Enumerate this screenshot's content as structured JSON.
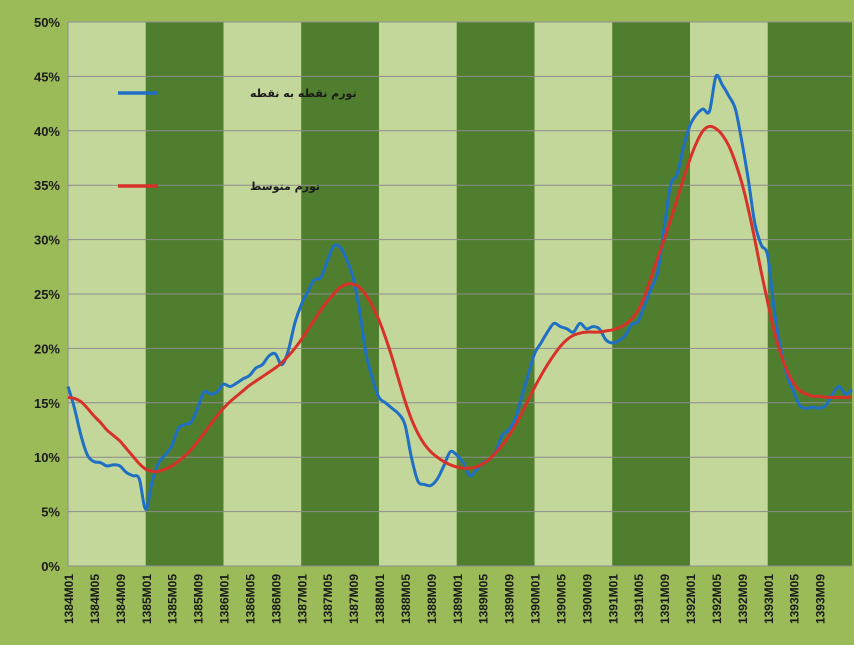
{
  "chart_data": {
    "type": "line",
    "ylim": [
      0,
      50
    ],
    "y_ticks": [
      "0%",
      "5%",
      "10%",
      "15%",
      "20%",
      "25%",
      "30%",
      "35%",
      "40%",
      "45%",
      "50%"
    ],
    "x_ticks": [
      "1384M01",
      "1384M05",
      "1384M09",
      "1385M01",
      "1385M05",
      "1385M09",
      "1386M01",
      "1386M05",
      "1386M09",
      "1387M01",
      "1387M05",
      "1387M09",
      "1388M01",
      "1388M05",
      "1388M09",
      "1389M01",
      "1389M05",
      "1389M09",
      "1390M01",
      "1390M05",
      "1390M09",
      "1391M01",
      "1391M05",
      "1391M09",
      "1392M01",
      "1392M05",
      "1392M09",
      "1393M01",
      "1393M05",
      "1393M09"
    ],
    "year_bands": [
      {
        "year": "1384",
        "shade": "light"
      },
      {
        "year": "1385",
        "shade": "dark"
      },
      {
        "year": "1386",
        "shade": "light"
      },
      {
        "year": "1387",
        "shade": "dark"
      },
      {
        "year": "1388",
        "shade": "light"
      },
      {
        "year": "1389",
        "shade": "dark"
      },
      {
        "year": "1390",
        "shade": "light"
      },
      {
        "year": "1391",
        "shade": "dark"
      },
      {
        "year": "1392",
        "shade": "light"
      },
      {
        "year": "1393",
        "shade": "dark"
      }
    ],
    "band_colors": {
      "light": "#c4d79b",
      "dark": "#4f7f2e"
    },
    "grid": true,
    "legend_position": "inside-top-left",
    "series": [
      {
        "name": "تورم نقطه به نقطه",
        "color": "#1f6fc4",
        "points": [
          [
            "1384M01",
            16.5
          ],
          [
            "1384M02",
            14.5
          ],
          [
            "1384M03",
            12
          ],
          [
            "1384M04",
            10.2
          ],
          [
            "1384M05",
            9.6
          ],
          [
            "1384M06",
            9.5
          ],
          [
            "1384M07",
            9.2
          ],
          [
            "1384M08",
            9.3
          ],
          [
            "1384M09",
            9.2
          ],
          [
            "1384M10",
            8.6
          ],
          [
            "1384M11",
            8.3
          ],
          [
            "1384M12",
            8
          ],
          [
            "1385M01",
            5.2
          ],
          [
            "1385M02",
            7.8
          ],
          [
            "1385M03",
            9.5
          ],
          [
            "1385M04",
            10.2
          ],
          [
            "1385M05",
            11
          ],
          [
            "1385M06",
            12.6
          ],
          [
            "1385M07",
            13
          ],
          [
            "1385M08",
            13.2
          ],
          [
            "1385M09",
            14.5
          ],
          [
            "1385M10",
            16
          ],
          [
            "1385M11",
            15.8
          ],
          [
            "1385M12",
            16
          ],
          [
            "1386M01",
            16.7
          ],
          [
            "1386M02",
            16.5
          ],
          [
            "1386M03",
            16.8
          ],
          [
            "1386M04",
            17.2
          ],
          [
            "1386M05",
            17.5
          ],
          [
            "1386M06",
            18.2
          ],
          [
            "1386M07",
            18.5
          ],
          [
            "1386M08",
            19.3
          ],
          [
            "1386M09",
            19.5
          ],
          [
            "1386M10",
            18.5
          ],
          [
            "1386M11",
            19.8
          ],
          [
            "1386M12",
            22.3
          ],
          [
            "1387M01",
            24
          ],
          [
            "1387M02",
            25.2
          ],
          [
            "1387M03",
            26.3
          ],
          [
            "1387M04",
            26.5
          ],
          [
            "1387M05",
            28
          ],
          [
            "1387M06",
            29.4
          ],
          [
            "1387M07",
            29.3
          ],
          [
            "1387M08",
            28.2
          ],
          [
            "1387M09",
            26.5
          ],
          [
            "1387M10",
            23.5
          ],
          [
            "1387M11",
            19.5
          ],
          [
            "1387M12",
            17.2
          ],
          [
            "1388M01",
            15.5
          ],
          [
            "1388M02",
            15
          ],
          [
            "1388M03",
            14.5
          ],
          [
            "1388M04",
            14
          ],
          [
            "1388M05",
            13
          ],
          [
            "1388M06",
            10
          ],
          [
            "1388M07",
            7.8
          ],
          [
            "1388M08",
            7.5
          ],
          [
            "1388M09",
            7.4
          ],
          [
            "1388M10",
            8
          ],
          [
            "1388M11",
            9.2
          ],
          [
            "1388M12",
            10.5
          ],
          [
            "1389M01",
            10.2
          ],
          [
            "1389M02",
            9.5
          ],
          [
            "1389M03",
            8.3
          ],
          [
            "1389M04",
            8.8
          ],
          [
            "1389M05",
            9.5
          ],
          [
            "1389M06",
            9.8
          ],
          [
            "1389M07",
            10.5
          ],
          [
            "1389M08",
            12
          ],
          [
            "1389M09",
            12.5
          ],
          [
            "1389M10",
            13.5
          ],
          [
            "1389M11",
            15.5
          ],
          [
            "1389M12",
            17.5
          ],
          [
            "1390M01",
            19.5
          ],
          [
            "1390M02",
            20.5
          ],
          [
            "1390M03",
            21.5
          ],
          [
            "1390M04",
            22.3
          ],
          [
            "1390M05",
            22
          ],
          [
            "1390M06",
            21.8
          ],
          [
            "1390M07",
            21.5
          ],
          [
            "1390M08",
            22.3
          ],
          [
            "1390M09",
            21.8
          ],
          [
            "1390M10",
            22
          ],
          [
            "1390M11",
            21.8
          ],
          [
            "1390M12",
            20.8
          ],
          [
            "1391M01",
            20.5
          ],
          [
            "1391M02",
            20.7
          ],
          [
            "1391M03",
            21.2
          ],
          [
            "1391M04",
            22.2
          ],
          [
            "1391M05",
            22.5
          ],
          [
            "1391M06",
            24
          ],
          [
            "1391M07",
            25.5
          ],
          [
            "1391M08",
            27
          ],
          [
            "1391M09",
            31
          ],
          [
            "1391M10",
            35
          ],
          [
            "1391M11",
            36
          ],
          [
            "1391M12",
            38.5
          ],
          [
            "1392M01",
            40.5
          ],
          [
            "1392M02",
            41.5
          ],
          [
            "1392M03",
            42
          ],
          [
            "1392M04",
            41.8
          ],
          [
            "1392M05",
            45
          ],
          [
            "1392M06",
            44.2
          ],
          [
            "1392M07",
            43.2
          ],
          [
            "1392M08",
            42
          ],
          [
            "1392M09",
            39
          ],
          [
            "1392M10",
            35.5
          ],
          [
            "1392M11",
            31.5
          ],
          [
            "1392M12",
            29.5
          ],
          [
            "1393M01",
            28.5
          ],
          [
            "1393M02",
            23.5
          ],
          [
            "1393M03",
            20
          ],
          [
            "1393M04",
            17.5
          ],
          [
            "1393M05",
            16
          ],
          [
            "1393M06",
            14.7
          ],
          [
            "1393M07",
            14.5
          ],
          [
            "1393M08",
            14.6
          ],
          [
            "1393M09",
            14.5
          ],
          [
            "1393M10",
            14.8
          ],
          [
            "1393M11",
            15.8
          ],
          [
            "1393M12",
            16.5
          ],
          [
            "1393M12+1",
            15.8
          ],
          [
            "1393M12+2",
            16.2
          ]
        ]
      },
      {
        "name": "تورم متوسط",
        "color": "#d6322a",
        "points": [
          [
            "1384M01",
            15.5
          ],
          [
            "1384M02",
            15.4
          ],
          [
            "1384M03",
            15.1
          ],
          [
            "1384M04",
            14.5
          ],
          [
            "1384M05",
            13.8
          ],
          [
            "1384M06",
            13.2
          ],
          [
            "1384M07",
            12.5
          ],
          [
            "1384M08",
            12
          ],
          [
            "1384M09",
            11.5
          ],
          [
            "1384M10",
            10.8
          ],
          [
            "1384M11",
            10.1
          ],
          [
            "1384M12",
            9.4
          ],
          [
            "1385M01",
            8.9
          ],
          [
            "1385M02",
            8.7
          ],
          [
            "1385M03",
            8.7
          ],
          [
            "1385M04",
            8.9
          ],
          [
            "1385M05",
            9.2
          ],
          [
            "1385M06",
            9.6
          ],
          [
            "1385M07",
            10.1
          ],
          [
            "1385M08",
            10.7
          ],
          [
            "1385M09",
            11.4
          ],
          [
            "1385M10",
            12.2
          ],
          [
            "1385M11",
            13
          ],
          [
            "1385M12",
            13.8
          ],
          [
            "1386M01",
            14.5
          ],
          [
            "1386M02",
            15.1
          ],
          [
            "1386M03",
            15.6
          ],
          [
            "1386M04",
            16.1
          ],
          [
            "1386M05",
            16.6
          ],
          [
            "1386M06",
            17
          ],
          [
            "1386M07",
            17.4
          ],
          [
            "1386M08",
            17.8
          ],
          [
            "1386M09",
            18.2
          ],
          [
            "1386M10",
            18.7
          ],
          [
            "1386M11",
            19.3
          ],
          [
            "1386M12",
            20
          ],
          [
            "1387M01",
            20.8
          ],
          [
            "1387M02",
            21.7
          ],
          [
            "1387M03",
            22.6
          ],
          [
            "1387M04",
            23.5
          ],
          [
            "1387M05",
            24.3
          ],
          [
            "1387M06",
            25
          ],
          [
            "1387M07",
            25.6
          ],
          [
            "1387M08",
            25.9
          ],
          [
            "1387M09",
            25.9
          ],
          [
            "1387M10",
            25.6
          ],
          [
            "1387M11",
            24.9
          ],
          [
            "1387M12",
            23.9
          ],
          [
            "1388M01",
            22.6
          ],
          [
            "1388M02",
            21
          ],
          [
            "1388M03",
            19.2
          ],
          [
            "1388M04",
            17.2
          ],
          [
            "1388M05",
            15.2
          ],
          [
            "1388M06",
            13.5
          ],
          [
            "1388M07",
            12.2
          ],
          [
            "1388M08",
            11.2
          ],
          [
            "1388M09",
            10.5
          ],
          [
            "1388M10",
            10
          ],
          [
            "1388M11",
            9.6
          ],
          [
            "1388M12",
            9.3
          ],
          [
            "1389M01",
            9.1
          ],
          [
            "1389M02",
            9
          ],
          [
            "1389M03",
            9
          ],
          [
            "1389M04",
            9.1
          ],
          [
            "1389M05",
            9.4
          ],
          [
            "1389M06",
            9.8
          ],
          [
            "1389M07",
            10.4
          ],
          [
            "1389M08",
            11.1
          ],
          [
            "1389M09",
            11.9
          ],
          [
            "1389M10",
            12.9
          ],
          [
            "1389M11",
            14
          ],
          [
            "1389M12",
            15.2
          ],
          [
            "1390M01",
            16.4
          ],
          [
            "1390M02",
            17.5
          ],
          [
            "1390M03",
            18.5
          ],
          [
            "1390M04",
            19.4
          ],
          [
            "1390M05",
            20.2
          ],
          [
            "1390M06",
            20.8
          ],
          [
            "1390M07",
            21.2
          ],
          [
            "1390M08",
            21.4
          ],
          [
            "1390M09",
            21.5
          ],
          [
            "1390M10",
            21.5
          ],
          [
            "1390M11",
            21.5
          ],
          [
            "1390M12",
            21.6
          ],
          [
            "1391M01",
            21.7
          ],
          [
            "1391M02",
            21.9
          ],
          [
            "1391M03",
            22.2
          ],
          [
            "1391M04",
            22.7
          ],
          [
            "1391M05",
            23.5
          ],
          [
            "1391M06",
            24.8
          ],
          [
            "1391M07",
            26.5
          ],
          [
            "1391M08",
            28.3
          ],
          [
            "1391M09",
            30
          ],
          [
            "1391M10",
            31.8
          ],
          [
            "1391M11",
            33.7
          ],
          [
            "1391M12",
            35.6
          ],
          [
            "1392M01",
            37.4
          ],
          [
            "1392M02",
            38.9
          ],
          [
            "1392M03",
            40
          ],
          [
            "1392M04",
            40.4
          ],
          [
            "1392M05",
            40.2
          ],
          [
            "1392M06",
            39.6
          ],
          [
            "1392M07",
            38.6
          ],
          [
            "1392M08",
            37.1
          ],
          [
            "1392M09",
            35.2
          ],
          [
            "1392M10",
            32.8
          ],
          [
            "1392M11",
            30
          ],
          [
            "1392M12",
            27
          ],
          [
            "1393M01",
            24.2
          ],
          [
            "1393M02",
            21.6
          ],
          [
            "1393M03",
            19.5
          ],
          [
            "1393M04",
            17.9
          ],
          [
            "1393M05",
            16.8
          ],
          [
            "1393M06",
            16.1
          ],
          [
            "1393M07",
            15.8
          ],
          [
            "1393M08",
            15.6
          ],
          [
            "1393M09",
            15.6
          ],
          [
            "1393M10",
            15.5
          ],
          [
            "1393M11",
            15.5
          ],
          [
            "1393M12",
            15.5
          ],
          [
            "1393M12+1",
            15.5
          ],
          [
            "1393M12+2",
            15.5
          ]
        ]
      }
    ]
  }
}
